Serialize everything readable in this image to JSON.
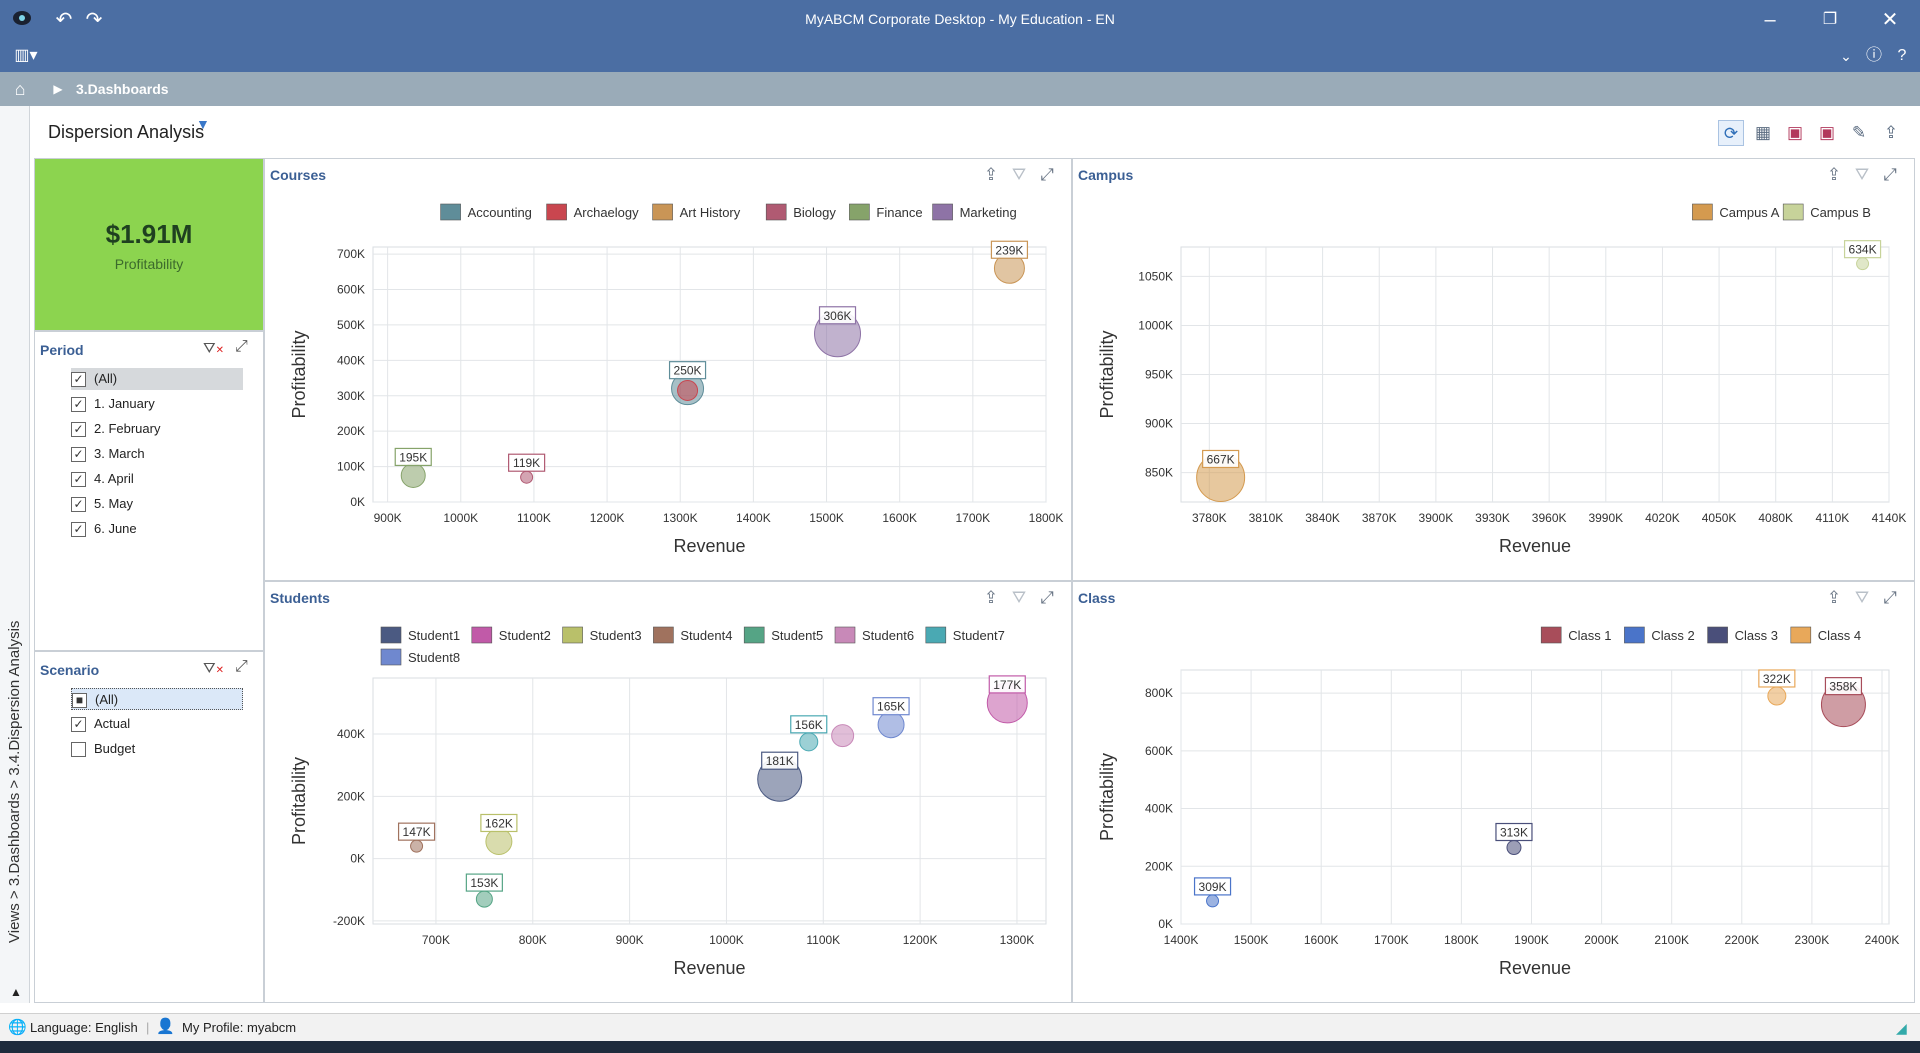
{
  "app": {
    "title": "MyABCM Corporate Desktop - My Education - EN"
  },
  "breadcrumb": {
    "label": "3.Dashboards"
  },
  "sidebar": {
    "path": "Views > 3.Dashboards > 3.4.Dispersion Analysis"
  },
  "page": {
    "title": "Dispersion Analysis"
  },
  "kpi": {
    "value": "$1.91M",
    "label": "Profitability"
  },
  "period": {
    "title": "Period",
    "items": [
      {
        "label": "(All)",
        "checked": true
      },
      {
        "label": "1. January",
        "checked": true
      },
      {
        "label": "2. February",
        "checked": true
      },
      {
        "label": "3. March",
        "checked": true
      },
      {
        "label": "4. April",
        "checked": true
      },
      {
        "label": "5. May",
        "checked": true
      },
      {
        "label": "6. June",
        "checked": true
      }
    ]
  },
  "scenario": {
    "title": "Scenario",
    "items": [
      {
        "label": "(All)",
        "checked": "partial"
      },
      {
        "label": "Actual",
        "checked": true
      },
      {
        "label": "Budget",
        "checked": false
      }
    ]
  },
  "status": {
    "language": "Language: English",
    "profile": "My Profile: myabcm"
  },
  "chart_data": [
    {
      "type": "scatter",
      "title": "Courses",
      "xlabel": "Revenue",
      "ylabel": "Profitability",
      "xticks": [
        "900K",
        "1000K",
        "1100K",
        "1200K",
        "1300K",
        "1400K",
        "1500K",
        "1600K",
        "1700K",
        "1800K"
      ],
      "yticks": [
        "0K",
        "100K",
        "200K",
        "300K",
        "400K",
        "500K",
        "600K",
        "700K"
      ],
      "xlim": [
        880,
        1800
      ],
      "ylim": [
        0,
        720
      ],
      "series": [
        {
          "name": "Accounting",
          "color": "#5f8d99",
          "points": [
            {
              "x": 1310,
              "y": 320,
              "label": "250K",
              "size": 16
            }
          ]
        },
        {
          "name": "Archaelogy",
          "color": "#c9464f",
          "points": [
            {
              "x": 1310,
              "y": 315,
              "label": "",
              "size": 10
            }
          ]
        },
        {
          "name": "Art History",
          "color": "#c99556",
          "points": [
            {
              "x": 1750,
              "y": 660,
              "label": "239K",
              "size": 15
            }
          ]
        },
        {
          "name": "Biology",
          "color": "#b05a72",
          "points": [
            {
              "x": 1090,
              "y": 70,
              "label": "119K",
              "size": 6
            }
          ]
        },
        {
          "name": "Finance",
          "color": "#86a36a",
          "points": [
            {
              "x": 935,
              "y": 75,
              "label": "195K",
              "size": 12
            }
          ]
        },
        {
          "name": "Marketing",
          "color": "#8e73a6",
          "points": [
            {
              "x": 1515,
              "y": 475,
              "label": "306K",
              "size": 23
            }
          ]
        }
      ]
    },
    {
      "type": "scatter",
      "title": "Campus",
      "xlabel": "Revenue",
      "ylabel": "Profitability",
      "xticks": [
        "3780K",
        "3810K",
        "3840K",
        "3870K",
        "3900K",
        "3930K",
        "3960K",
        "3990K",
        "4020K",
        "4050K",
        "4080K",
        "4110K",
        "4140K"
      ],
      "yticks": [
        "850K",
        "900K",
        "950K",
        "1000K",
        "1050K"
      ],
      "xlim": [
        3765,
        4140
      ],
      "ylim": [
        820,
        1080
      ],
      "series": [
        {
          "name": "Campus A",
          "color": "#d49a4f",
          "points": [
            {
              "x": 3786,
              "y": 845,
              "label": "667K",
              "size": 24
            }
          ]
        },
        {
          "name": "Campus B",
          "color": "#c7d39a",
          "points": [
            {
              "x": 4126,
              "y": 1063,
              "label": "634K",
              "size": 6
            }
          ]
        }
      ]
    },
    {
      "type": "scatter",
      "title": "Students",
      "xlabel": "Revenue",
      "ylabel": "Profitability",
      "xticks": [
        "700K",
        "800K",
        "900K",
        "1000K",
        "1100K",
        "1200K",
        "1300K"
      ],
      "yticks": [
        "-200K",
        "0K",
        "200K",
        "400K"
      ],
      "xlim": [
        635,
        1330
      ],
      "ylim": [
        -210,
        580
      ],
      "series": [
        {
          "name": "Student1",
          "color": "#4b5a82",
          "points": [
            {
              "x": 1055,
              "y": 255,
              "label": "181K",
              "size": 22
            }
          ]
        },
        {
          "name": "Student2",
          "color": "#c15aa8",
          "points": [
            {
              "x": 1290,
              "y": 500,
              "label": "177K",
              "size": 20
            }
          ]
        },
        {
          "name": "Student3",
          "color": "#b9c06a",
          "points": [
            {
              "x": 765,
              "y": 55,
              "label": "162K",
              "size": 13
            }
          ]
        },
        {
          "name": "Student4",
          "color": "#a0725e",
          "points": [
            {
              "x": 680,
              "y": 40,
              "label": "147K",
              "size": 6
            }
          ]
        },
        {
          "name": "Student5",
          "color": "#55a485",
          "points": [
            {
              "x": 750,
              "y": -130,
              "label": "153K",
              "size": 8
            }
          ]
        },
        {
          "name": "Student6",
          "color": "#c889b8",
          "points": [
            {
              "x": 1120,
              "y": 395,
              "label": "",
              "size": 11
            }
          ]
        },
        {
          "name": "Student7",
          "color": "#4aa9b3",
          "points": [
            {
              "x": 1085,
              "y": 375,
              "label": "156K",
              "size": 9
            }
          ]
        },
        {
          "name": "Student8",
          "color": "#6f88cf",
          "points": [
            {
              "x": 1170,
              "y": 430,
              "label": "165K",
              "size": 13
            }
          ]
        }
      ]
    },
    {
      "type": "scatter",
      "title": "Class",
      "xlabel": "Revenue",
      "ylabel": "Profitability",
      "xticks": [
        "1400K",
        "1500K",
        "1600K",
        "1700K",
        "1800K",
        "1900K",
        "2000K",
        "2100K",
        "2200K",
        "2300K",
        "2400K"
      ],
      "yticks": [
        "0K",
        "200K",
        "400K",
        "600K",
        "800K"
      ],
      "xlim": [
        1400,
        2410
      ],
      "ylim": [
        0,
        880
      ],
      "series": [
        {
          "name": "Class 1",
          "color": "#a84d5a",
          "points": [
            {
              "x": 2345,
              "y": 760,
              "label": "358K",
              "size": 22
            }
          ]
        },
        {
          "name": "Class 2",
          "color": "#4a74c9",
          "points": [
            {
              "x": 1445,
              "y": 80,
              "label": "309K",
              "size": 6
            }
          ]
        },
        {
          "name": "Class 3",
          "color": "#4a4f7a",
          "points": [
            {
              "x": 1875,
              "y": 265,
              "label": "313K",
              "size": 7
            }
          ]
        },
        {
          "name": "Class 4",
          "color": "#e8a85a",
          "points": [
            {
              "x": 2250,
              "y": 790,
              "label": "322K",
              "size": 9
            }
          ]
        }
      ]
    }
  ]
}
